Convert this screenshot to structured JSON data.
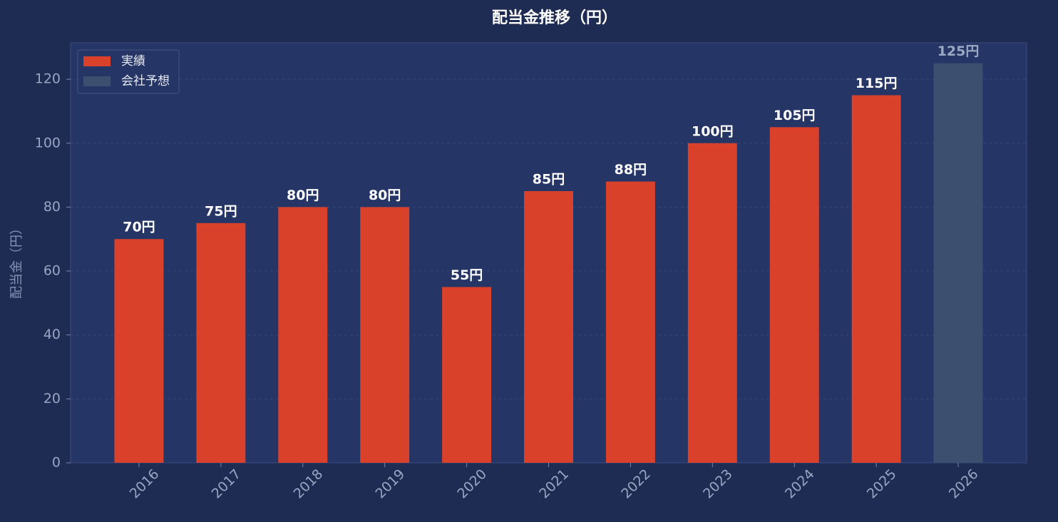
{
  "chart_data": {
    "type": "bar",
    "title": "配当金推移（円）",
    "y_label": "配当金（円）",
    "categories": [
      "2016",
      "2017",
      "2018",
      "2019",
      "2020",
      "2021",
      "2022",
      "2023",
      "2024",
      "2025",
      "2026"
    ],
    "series": [
      {
        "name": "実績",
        "color": "#d9412b",
        "label_color": "#ffffff",
        "values": [
          70,
          75,
          80,
          80,
          55,
          85,
          88,
          100,
          105,
          115,
          null
        ],
        "value_labels": [
          "70円",
          "75円",
          "80円",
          "80円",
          "55円",
          "85円",
          "88円",
          "100円",
          "105円",
          "115円",
          null
        ]
      },
      {
        "name": "会社予想",
        "color": "#3d4f6e",
        "label_color": "#9aa9c4",
        "values": [
          null,
          null,
          null,
          null,
          null,
          null,
          null,
          null,
          null,
          null,
          125
        ],
        "value_labels": [
          null,
          null,
          null,
          null,
          null,
          null,
          null,
          null,
          null,
          null,
          "125円"
        ]
      }
    ],
    "ylim": [
      0,
      131.4
    ],
    "yticks": [
      0,
      20,
      40,
      60,
      80,
      100,
      120
    ],
    "grid": true,
    "legend": "upper left"
  }
}
